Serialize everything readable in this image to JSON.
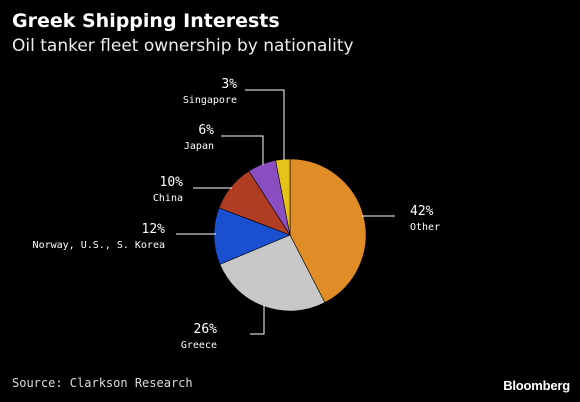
{
  "header": {
    "title": "Greek Shipping Interests",
    "subtitle": "Oil tanker fleet ownership by nationality"
  },
  "chart_data": {
    "type": "pie",
    "title": "Greek Shipping Interests",
    "subtitle": "Oil tanker fleet ownership by nationality",
    "slices": [
      {
        "label": "Other",
        "value": 42,
        "value_label": "42%",
        "color": "#e08c27"
      },
      {
        "label": "Greece",
        "value": 26,
        "value_label": "26%",
        "color": "#c8c8c8"
      },
      {
        "label": "Norway, U.S., S. Korea",
        "value": 12,
        "value_label": "12%",
        "color": "#1a4fd0"
      },
      {
        "label": "China",
        "value": 10,
        "value_label": "10%",
        "color": "#b03c23"
      },
      {
        "label": "Japan",
        "value": 6,
        "value_label": "6%",
        "color": "#8a4ec0"
      },
      {
        "label": "Singapore",
        "value": 3,
        "value_label": "3%",
        "color": "#e6c31a"
      }
    ],
    "start_angle_deg": 0,
    "direction": "clockwise"
  },
  "footer": {
    "source": "Source: Clarkson Research",
    "brand": "Bloomberg"
  }
}
